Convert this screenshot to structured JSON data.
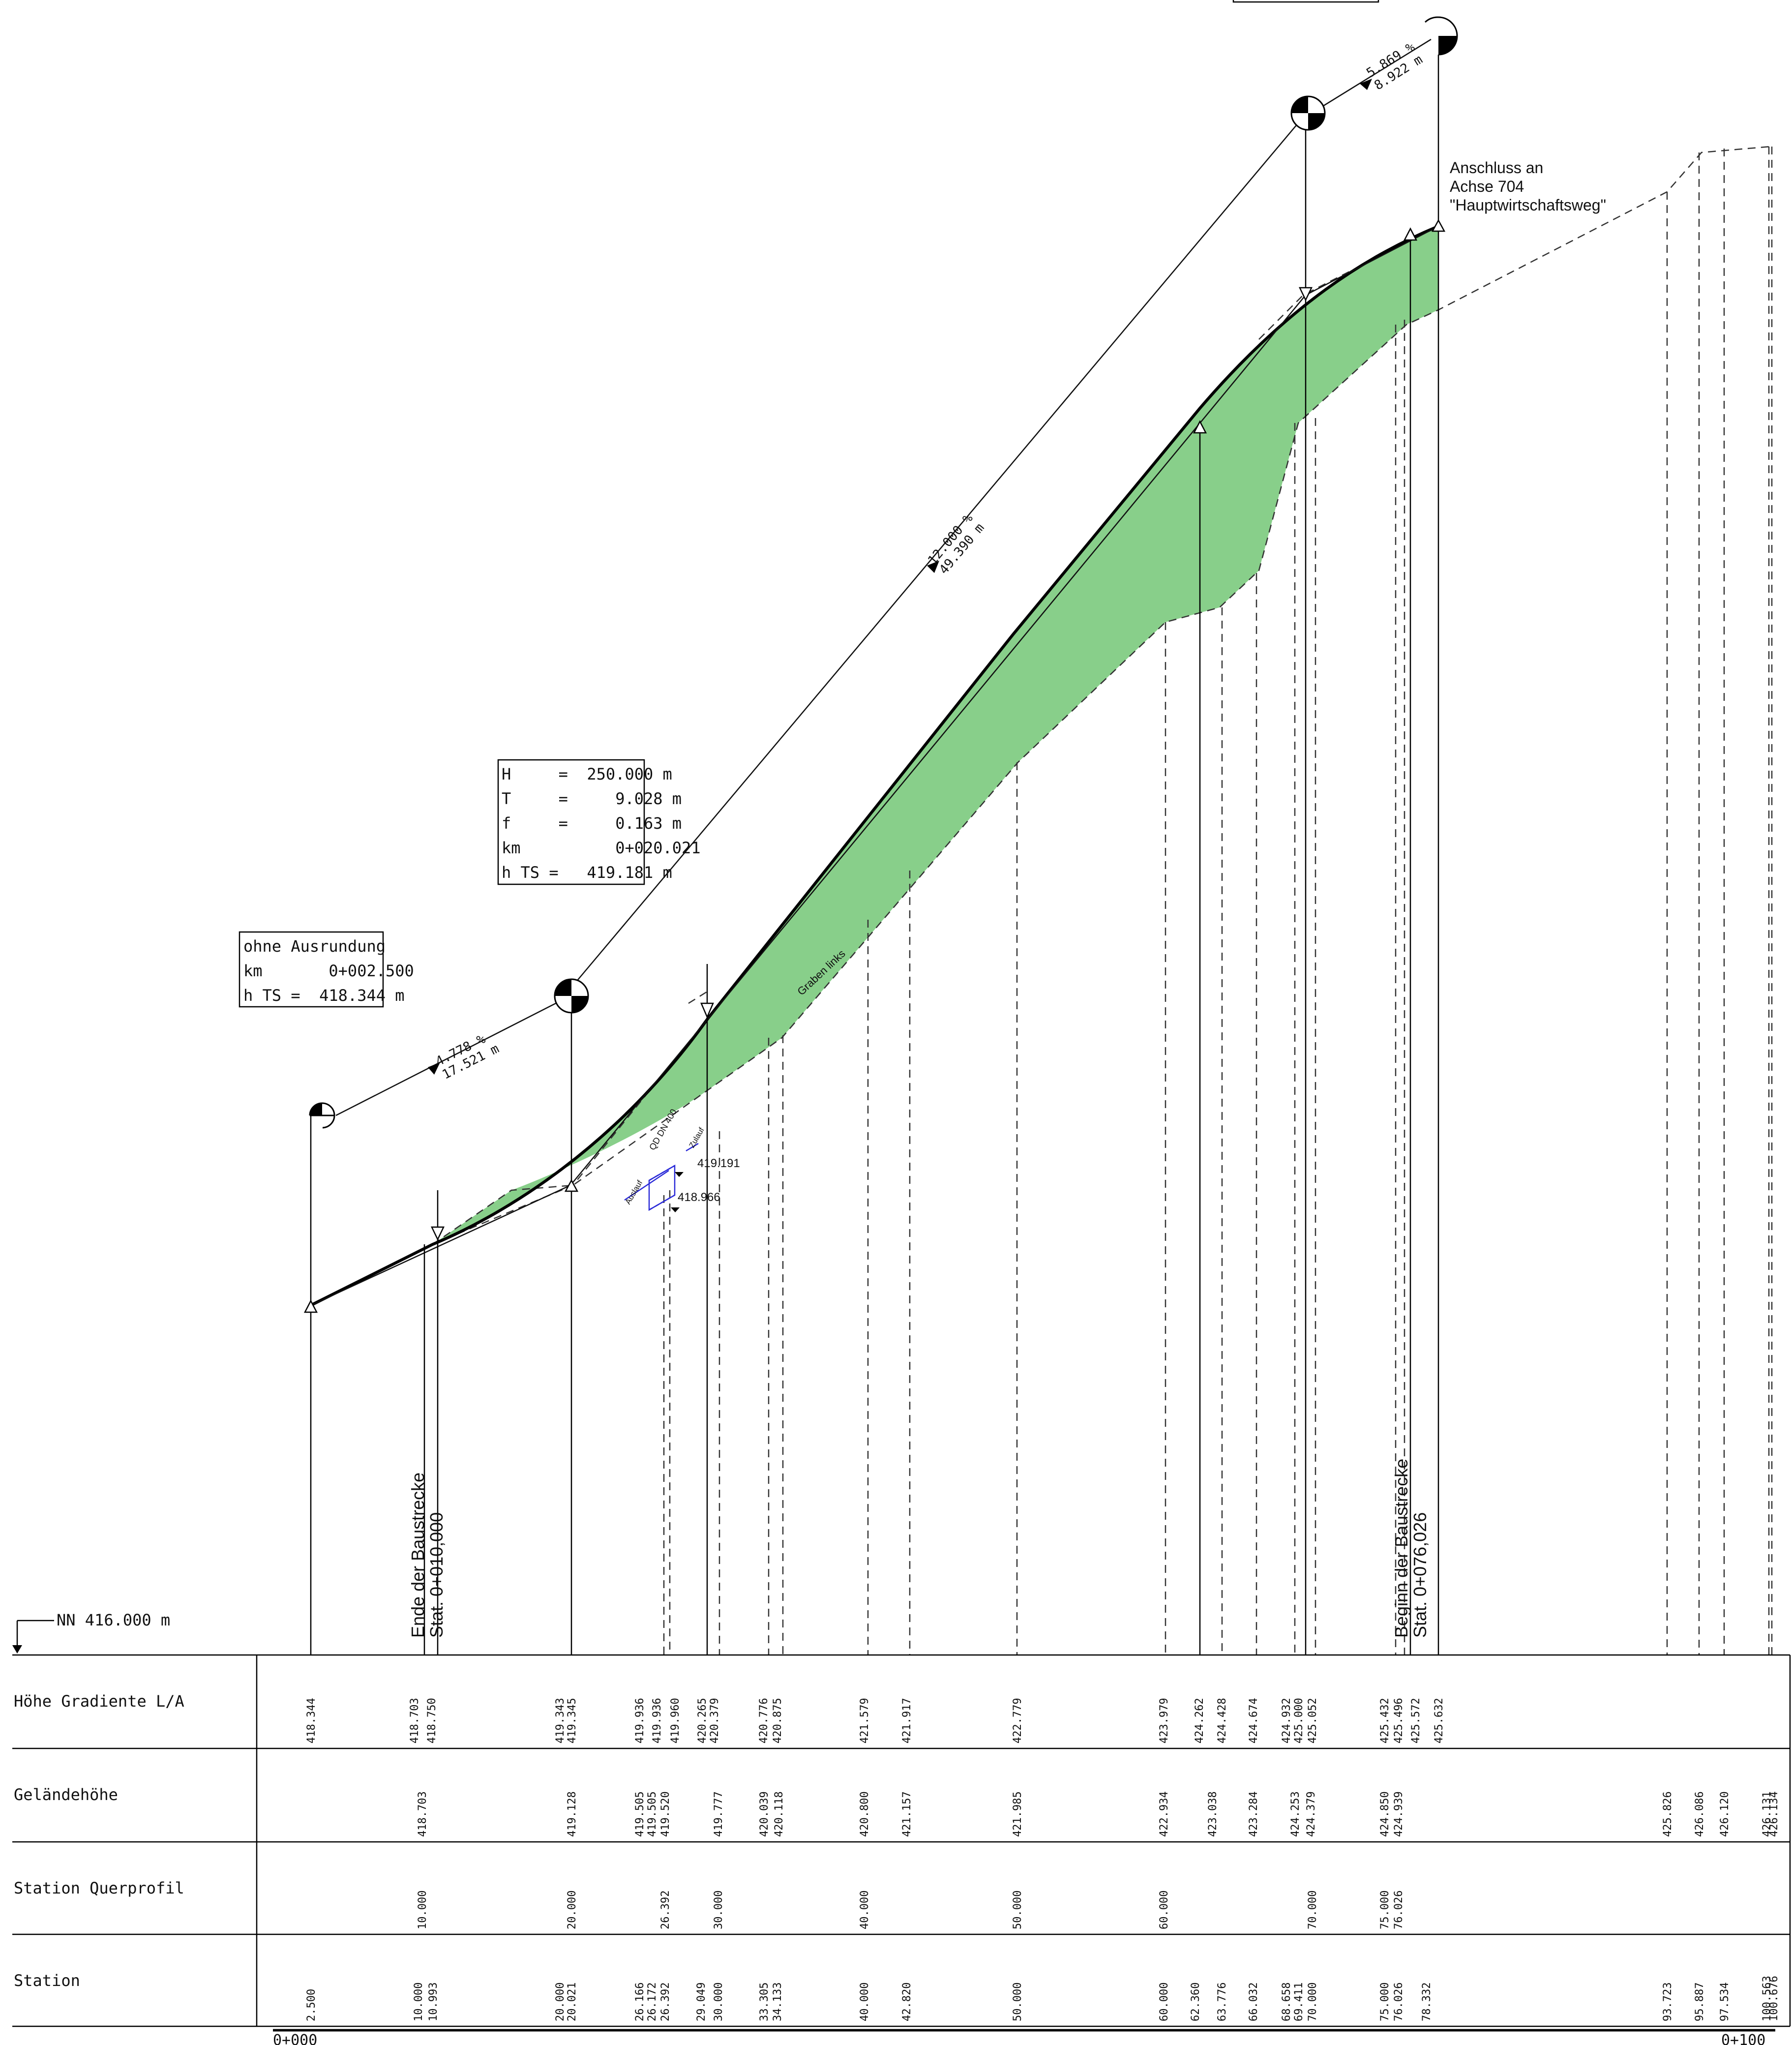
{
  "reference_level": "NN 416.000 m",
  "table": {
    "rows": [
      {
        "label": "Höhe Gradiente L/A"
      },
      {
        "label": "Geländehöhe"
      },
      {
        "label": "Station Querprofil"
      },
      {
        "label": "Station"
      }
    ],
    "gradient_heights": [
      "418.344",
      "418.703",
      "418.750",
      "419.343",
      "419.345",
      "419.936",
      "419.936",
      "419.960",
      "420.265",
      "420.379",
      "420.776",
      "420.875",
      "421.579",
      "421.917",
      "422.779",
      "423.979",
      "424.262",
      "424.428",
      "424.674",
      "424.932",
      "425.000",
      "425.052",
      "425.432",
      "425.496",
      "425.572",
      "425.632"
    ],
    "terrain_heights": [
      "418.703",
      "419.128",
      "419.505",
      "419.505",
      "419.520",
      "419.777",
      "420.039",
      "420.118",
      "420.800",
      "421.157",
      "421.985",
      "422.934",
      "423.038",
      "423.284",
      "424.253",
      "424.379",
      "424.850",
      "424.939",
      "425.826",
      "426.086",
      "426.120",
      "426.131",
      "426.134"
    ],
    "cross_sections": [
      "10.000",
      "20.000",
      "26.392",
      "30.000",
      "40.000",
      "50.000",
      "60.000",
      "70.000",
      "75.000",
      "76.026"
    ],
    "stations": [
      "2.500",
      "10.000",
      "10.993",
      "20.000",
      "20.021",
      "26.166",
      "26.172",
      "26.392",
      "29.049",
      "30.000",
      "33.305",
      "34.133",
      "40.000",
      "42.820",
      "50.000",
      "60.000",
      "62.360",
      "63.776",
      "66.032",
      "68.658",
      "69.411",
      "70.000",
      "75.000",
      "76.026",
      "78.332",
      "93.723",
      "95.887",
      "97.534",
      "100.563",
      "100.676"
    ],
    "axis_start": "0+000",
    "axis_end": "0+100"
  },
  "boxes": {
    "box1": [
      "ohne Ausrundung",
      "km       0+002.500",
      "h TS =  418.344 m"
    ],
    "box2": [
      "H     =  250.000 m",
      "T     =     9.028 m",
      "f     =     0.163 m",
      "km          0+020.021",
      "h TS =   419.181 m"
    ]
  },
  "slopes": [
    {
      "percent": "4.778 %",
      "length": "17.521 m"
    },
    {
      "percent": "12.000 %",
      "length": "49.390 m"
    },
    {
      "percent": "5.869 %",
      "length": "8.922 m"
    }
  ],
  "labels": {
    "end_construction_1": "Ende der Baustrecke",
    "end_construction_2": "Stat. 0+010,000",
    "begin_construction_1": "Beginn der Baustrecke",
    "begin_construction_2": "Stat. 0+076,026",
    "connection_1": "Anschluss an",
    "connection_2": "Achse 704",
    "connection_3": "\"Hauptwirtschaftsweg\"",
    "ditch": "Graben links",
    "pipe": "QD DN 400",
    "pipe_out": "Auslauf",
    "pipe_in": "Zulauf",
    "level_1": "419.191",
    "level_2": "418.966"
  },
  "colors": {
    "fill": "#88cf8a",
    "culvert": "#2a2ad8",
    "line": "#111111"
  }
}
